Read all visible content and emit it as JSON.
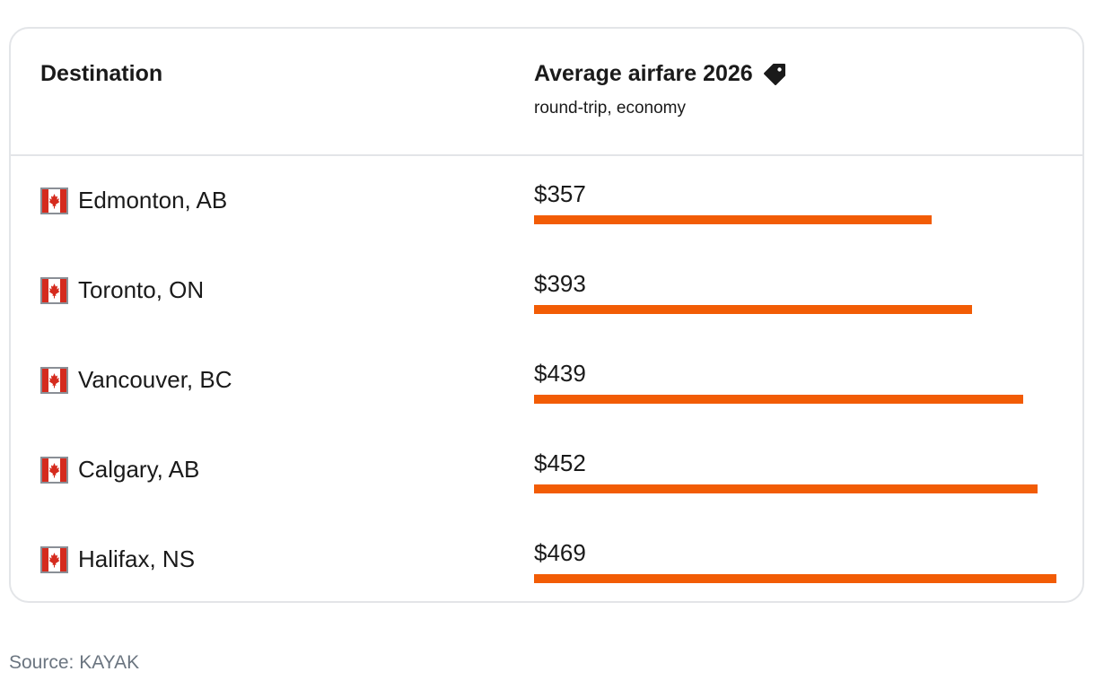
{
  "header": {
    "destination_label": "Destination",
    "fare_label": "Average airfare 2026",
    "fare_sublabel": "round-trip, economy"
  },
  "icons": {
    "tag": "price-tag-icon",
    "flag": "canada-flag-icon"
  },
  "colors": {
    "bar": "#f25c05",
    "flag_red": "#d52b1e"
  },
  "chart_data": {
    "type": "bar",
    "orientation": "horizontal",
    "title": "Average airfare 2026",
    "subtitle": "round-trip, economy",
    "categories": [
      "Edmonton, AB",
      "Toronto, ON",
      "Vancouver, BC",
      "Calgary, AB",
      "Halifax, NS"
    ],
    "values": [
      357,
      393,
      439,
      452,
      469
    ],
    "value_labels": [
      "$357",
      "$393",
      "$439",
      "$452",
      "$469"
    ],
    "xlim": [
      0,
      469
    ]
  },
  "source": "Source: KAYAK"
}
